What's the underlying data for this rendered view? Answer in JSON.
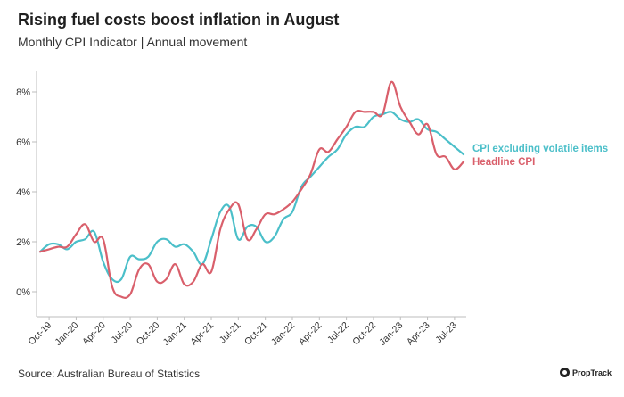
{
  "title": "Rising fuel costs boost inflation in August",
  "subtitle": "Monthly CPI Indicator | Annual movement",
  "source": "Source: Australian Bureau of Statistics",
  "brand": "PropTrack",
  "colors": {
    "cpi_ex_volatile": "#4bbfc9",
    "headline": "#d95f6b",
    "axis": "#bdbdbd",
    "text": "#333333"
  },
  "chart_data": {
    "type": "line",
    "x": [
      "2019-09",
      "2019-10",
      "2019-11",
      "2019-12",
      "2020-01",
      "2020-02",
      "2020-03",
      "2020-04",
      "2020-05",
      "2020-06",
      "2020-07",
      "2020-08",
      "2020-09",
      "2020-10",
      "2020-11",
      "2020-12",
      "2021-01",
      "2021-02",
      "2021-03",
      "2021-04",
      "2021-05",
      "2021-06",
      "2021-07",
      "2021-08",
      "2021-09",
      "2021-10",
      "2021-11",
      "2021-12",
      "2022-01",
      "2022-02",
      "2022-03",
      "2022-04",
      "2022-05",
      "2022-06",
      "2022-07",
      "2022-08",
      "2022-09",
      "2022-10",
      "2022-11",
      "2022-12",
      "2023-01",
      "2023-02",
      "2023-03",
      "2023-04",
      "2023-05",
      "2023-06",
      "2023-07",
      "2023-08"
    ],
    "x_tick_labels": [
      "Oct-19",
      "Jan-20",
      "Apr-20",
      "Jul-20",
      "Oct-20",
      "Jan-21",
      "Apr-21",
      "Jul-21",
      "Oct-21",
      "Jan-22",
      "Apr-22",
      "Jul-22",
      "Oct-22",
      "Jan-23",
      "Apr-23",
      "Jul-23"
    ],
    "ylim": [
      -1,
      9
    ],
    "y_ticks": [
      0,
      2,
      4,
      6,
      8
    ],
    "y_tick_labels": [
      "0%",
      "2%",
      "4%",
      "6%",
      "8%"
    ],
    "series": [
      {
        "name": "CPI excluding volatile items",
        "values": [
          1.6,
          1.9,
          1.9,
          1.7,
          2.0,
          2.1,
          2.4,
          1.2,
          0.5,
          0.5,
          1.4,
          1.3,
          1.4,
          2.0,
          2.1,
          1.8,
          1.9,
          1.6,
          1.1,
          2.1,
          3.2,
          3.4,
          2.1,
          2.6,
          2.6,
          2.0,
          2.2,
          2.9,
          3.2,
          4.2,
          4.6,
          5.0,
          5.4,
          5.7,
          6.3,
          6.6,
          6.6,
          7.0,
          7.1,
          7.2,
          6.9,
          6.8,
          6.9,
          6.5,
          6.4,
          6.1,
          5.8,
          5.5
        ]
      },
      {
        "name": "Headline CPI",
        "values": [
          1.6,
          1.7,
          1.8,
          1.8,
          2.3,
          2.7,
          2.0,
          2.1,
          0.2,
          -0.2,
          -0.1,
          0.9,
          1.1,
          0.4,
          0.5,
          1.1,
          0.3,
          0.4,
          1.1,
          0.8,
          2.5,
          3.3,
          3.5,
          2.1,
          2.5,
          3.1,
          3.1,
          3.3,
          3.6,
          4.1,
          4.7,
          5.7,
          5.6,
          6.1,
          6.6,
          7.2,
          7.2,
          7.2,
          7.1,
          8.4,
          7.4,
          6.8,
          6.3,
          6.7,
          5.5,
          5.4,
          4.9,
          5.2
        ]
      }
    ]
  }
}
